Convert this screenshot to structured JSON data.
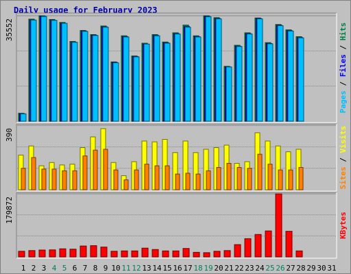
{
  "chart_data": {
    "type": "bar",
    "title": "Daily usage for February 2023",
    "categories": [
      "1",
      "2",
      "3",
      "4",
      "5",
      "6",
      "7",
      "8",
      "9",
      "10",
      "11",
      "12",
      "13",
      "14",
      "15",
      "16",
      "17",
      "18",
      "19",
      "20",
      "21",
      "22",
      "23",
      "24",
      "25",
      "26",
      "27",
      "28",
      "29",
      "30",
      "31"
    ],
    "weekend_days": [
      "4",
      "5",
      "11",
      "12",
      "18",
      "19",
      "25",
      "26"
    ],
    "panels": [
      {
        "name": "hits_files_pages",
        "ymax_label": "35552",
        "ylim": [
          0,
          35552
        ],
        "right_label": [
          {
            "text": "Pages",
            "color": "#00bfff"
          },
          {
            "text": " / ",
            "color": "#000000"
          },
          {
            "text": "Files",
            "color": "#0000ff"
          },
          {
            "text": " / ",
            "color": "#000000"
          },
          {
            "text": "Hits",
            "color": "#008040"
          }
        ],
        "series": [
          {
            "name": "Hits",
            "color": "#009450",
            "values": [
              2700,
              34400,
              35552,
              34300,
              33300,
              26900,
              30600,
              29200,
              32100,
              20000,
              28800,
              22000,
              26300,
              29200,
              26700,
              29800,
              32400,
              28800,
              35552,
              34900,
              18500,
              25600,
              29800,
              34800,
              26500,
              32600,
              30800,
              28500,
              null,
              null,
              null
            ]
          },
          {
            "name": "Files",
            "color": "#0000ff",
            "values": [
              2500,
              34100,
              35400,
              34000,
              33000,
              26600,
              30400,
              29000,
              31800,
              19800,
              28500,
              21800,
              26000,
              28900,
              26400,
              29500,
              31900,
              28500,
              35300,
              34600,
              18300,
              25300,
              29500,
              34600,
              26200,
              32300,
              30500,
              28200,
              null,
              null,
              null
            ]
          },
          {
            "name": "Pages",
            "color": "#00bfff",
            "values": [
              2500,
              34100,
              35300,
              34000,
              33000,
              26600,
              30300,
              28900,
              31700,
              19700,
              28400,
              21700,
              26000,
              28800,
              26300,
              29400,
              31700,
              28400,
              35200,
              34500,
              18300,
              25200,
              29400,
              34500,
              26100,
              32200,
              30400,
              28100,
              null,
              null,
              null
            ]
          }
        ]
      },
      {
        "name": "visits_sites",
        "ymax_label": "390",
        "ylim": [
          0,
          390
        ],
        "right_label": [
          {
            "text": "Sites",
            "color": "#ff8000"
          },
          {
            "text": " / ",
            "color": "#000000"
          },
          {
            "text": "Visits",
            "color": "#ffff00"
          }
        ],
        "series": [
          {
            "name": "Visits",
            "color": "#ffff00",
            "values": [
              210,
              265,
              145,
              165,
              150,
              155,
              255,
              320,
              370,
              165,
              85,
              170,
              295,
              290,
              305,
              225,
              295,
              225,
              245,
              255,
              270,
              160,
              170,
              345,
              295,
              265,
              230,
              245,
              null,
              null,
              null
            ]
          },
          {
            "name": "Sites",
            "color": "#ff8000",
            "values": [
              130,
              195,
              125,
              125,
              115,
              115,
              205,
              240,
              245,
              120,
              60,
              120,
              155,
              145,
              145,
              95,
              100,
              95,
              115,
              135,
              160,
              135,
              130,
              215,
              155,
              120,
              120,
              135,
              null,
              null,
              null
            ]
          }
        ]
      },
      {
        "name": "kbytes",
        "ymax_label": "179872",
        "ylim": [
          0,
          179872
        ],
        "right_label": [
          {
            "text": "KBytes",
            "color": "#ff0000"
          }
        ],
        "series": [
          {
            "name": "KBytes",
            "color": "#ff0000",
            "values": [
              16000,
              18000,
              19500,
              20000,
              23000,
              22000,
              31000,
              32000,
              28000,
              16000,
              17000,
              17000,
              25000,
              21000,
              17000,
              17000,
              24000,
              13000,
              12000,
              16000,
              18000,
              35000,
              52000,
              64000,
              74000,
              179872,
              73000,
              17000,
              null,
              null,
              null
            ]
          }
        ]
      }
    ]
  }
}
